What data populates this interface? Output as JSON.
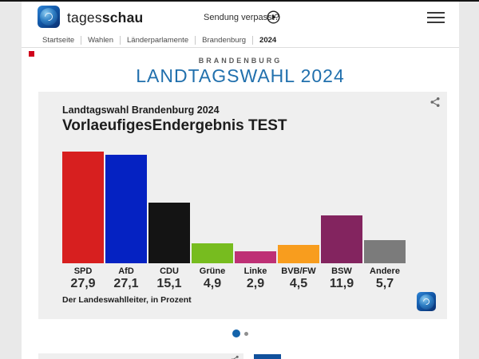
{
  "header": {
    "brand": {
      "prefix": "tages",
      "suffix": "schau"
    },
    "sendung_verpasst": "Sendung verpasst?",
    "breadcrumb": [
      "Startseite",
      "Wahlen",
      "Länderparlamente",
      "Brandenburg",
      "2024"
    ]
  },
  "hero": {
    "kicker": "BRANDENBURG",
    "title": "LANDTAGSWAHL 2024",
    "title_color": "#2170ad"
  },
  "chart_card": {
    "subtitle": "Landtagswahl Brandenburg 2024",
    "title": "VorlaeufigesEndergebnis TEST",
    "source": "Der Landeswahlleiter, in Prozent"
  },
  "chart_data": {
    "type": "bar",
    "subtitle": "Landtagswahl Brandenburg 2024",
    "title": "VorlaeufigesEndergebnis TEST",
    "categories": [
      "SPD",
      "AfD",
      "CDU",
      "Grüne",
      "Linke",
      "BVB/FW",
      "BSW",
      "Andere"
    ],
    "values": [
      27.9,
      27.1,
      15.1,
      4.9,
      2.9,
      4.5,
      11.9,
      5.7
    ],
    "value_labels": [
      "27,9",
      "27,1",
      "15,1",
      "4,9",
      "2,9",
      "4,5",
      "11,9",
      "5,7"
    ],
    "colors": [
      "#d71f1f",
      "#0522c2",
      "#141414",
      "#77bc1f",
      "#be3075",
      "#f89d1e",
      "#83245f",
      "#7b7b7b"
    ],
    "unit": "Prozent",
    "source": "Der Landeswahlleiter, in Prozent",
    "ylim": [
      0,
      30
    ],
    "grid": false,
    "legend": false
  },
  "carousel": {
    "dots": 2,
    "active": 0
  },
  "accent": {
    "active_dot": "#1464ab",
    "link_blue": "#11519c"
  }
}
